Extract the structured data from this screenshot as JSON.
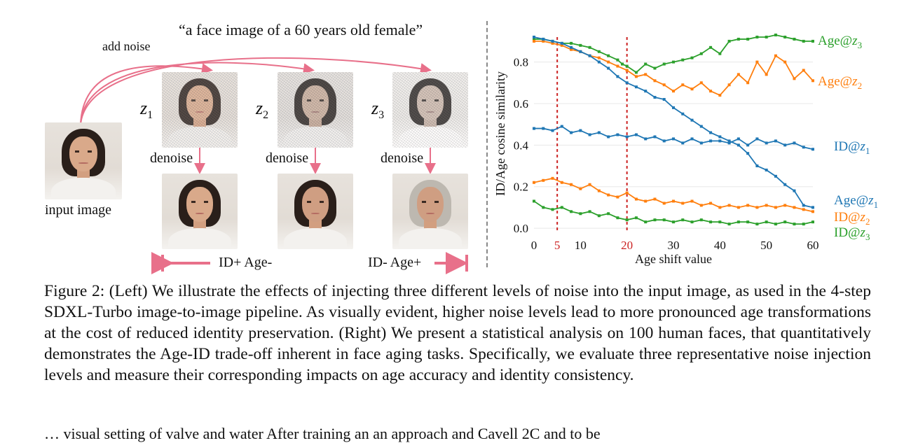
{
  "figure": {
    "prompt": "“a face image of a 60 years old female”",
    "add_noise_label": "add noise",
    "input_label": "input image",
    "denoise_label": "denoise",
    "z_labels": [
      "z",
      "z",
      "z"
    ],
    "z_subs": [
      "1",
      "2",
      "3"
    ],
    "id_plus_label": "ID+ Age-",
    "id_minus_label": "ID- Age+"
  },
  "caption": {
    "text": "Figure 2: (Left) We illustrate the effects of injecting three different levels of noise into the input image, as used in the 4-step SDXL-Turbo image-to-image pipeline. As visually evident, higher noise levels lead to more pronounced age transformations at the cost of reduced identity preservation. (Right) We present a statistical analysis on 100 human faces, that quantitatively demonstrates the Age-ID trade-off inherent in face aging tasks. Specifically, we evaluate three representative noise injection levels and measure their corresponding impacts on age accuracy and identity consistency."
  },
  "next_line_text": "… visual setting of valve and water After training an an approach and Cavell 2C and to be",
  "chart_data": {
    "type": "line",
    "xlabel": "Age shift value",
    "ylabel": "ID/Age cosine similarity",
    "xlim": [
      0,
      60
    ],
    "ylim": [
      -0.02,
      0.93
    ],
    "x_ticks": [
      0,
      10,
      30,
      40,
      50,
      60
    ],
    "x_ticks_highlight": [
      5,
      20
    ],
    "y_ticks": [
      0.0,
      0.2,
      0.4,
      0.6,
      0.8
    ],
    "y_tick_labels": [
      "0.0",
      "0.2",
      "0.4",
      "0.6",
      "0.8"
    ],
    "grid": "horizontal",
    "highlight_lines": [
      5,
      20
    ],
    "highlight_color": "#cc2222",
    "series": [
      {
        "name": "Age@",
        "sub": "3",
        "color": "#2ca02c",
        "x": [
          0,
          2,
          4,
          6,
          8,
          10,
          12,
          14,
          16,
          18,
          19,
          20,
          22,
          24,
          26,
          28,
          30,
          32,
          34,
          36,
          38,
          40,
          42,
          44,
          46,
          48,
          50,
          52,
          54,
          56,
          58,
          60
        ],
        "y": [
          0.91,
          0.91,
          0.9,
          0.89,
          0.89,
          0.88,
          0.87,
          0.85,
          0.83,
          0.81,
          0.79,
          0.78,
          0.75,
          0.79,
          0.77,
          0.79,
          0.8,
          0.81,
          0.82,
          0.84,
          0.87,
          0.84,
          0.9,
          0.91,
          0.91,
          0.92,
          0.92,
          0.93,
          0.92,
          0.91,
          0.9,
          0.9
        ]
      },
      {
        "name": "Age@",
        "sub": "2",
        "color": "#ff7f0e",
        "x": [
          0,
          2,
          4,
          6,
          8,
          10,
          12,
          14,
          16,
          18,
          20,
          22,
          24,
          26,
          28,
          30,
          32,
          34,
          36,
          38,
          40,
          42,
          44,
          46,
          48,
          50,
          52,
          54,
          56,
          58,
          60
        ],
        "y": [
          0.9,
          0.9,
          0.89,
          0.88,
          0.86,
          0.85,
          0.83,
          0.82,
          0.8,
          0.78,
          0.76,
          0.73,
          0.74,
          0.71,
          0.69,
          0.66,
          0.69,
          0.67,
          0.7,
          0.66,
          0.64,
          0.69,
          0.74,
          0.7,
          0.8,
          0.74,
          0.83,
          0.8,
          0.72,
          0.76,
          0.71
        ]
      },
      {
        "name": "ID@",
        "sub": "1",
        "color": "#1f77b4",
        "x": [
          0,
          2,
          4,
          6,
          8,
          10,
          12,
          14,
          16,
          18,
          20,
          22,
          24,
          26,
          28,
          30,
          32,
          34,
          36,
          38,
          40,
          42,
          44,
          46,
          48,
          50,
          52,
          54,
          56,
          58,
          60
        ],
        "y": [
          0.48,
          0.48,
          0.47,
          0.49,
          0.46,
          0.47,
          0.45,
          0.46,
          0.44,
          0.45,
          0.44,
          0.45,
          0.43,
          0.44,
          0.42,
          0.43,
          0.41,
          0.43,
          0.41,
          0.42,
          0.42,
          0.41,
          0.43,
          0.4,
          0.43,
          0.41,
          0.42,
          0.4,
          0.41,
          0.39,
          0.38
        ]
      },
      {
        "name": "Age@",
        "sub": "1",
        "color": "#1f77b4",
        "x": [
          0,
          2,
          4,
          6,
          8,
          10,
          12,
          14,
          16,
          18,
          20,
          22,
          24,
          26,
          28,
          30,
          32,
          34,
          36,
          38,
          40,
          42,
          44,
          46,
          48,
          50,
          52,
          54,
          56,
          58,
          60
        ],
        "y": [
          0.92,
          0.91,
          0.9,
          0.89,
          0.87,
          0.85,
          0.83,
          0.8,
          0.77,
          0.73,
          0.7,
          0.68,
          0.66,
          0.63,
          0.62,
          0.58,
          0.55,
          0.52,
          0.49,
          0.46,
          0.44,
          0.42,
          0.4,
          0.36,
          0.3,
          0.28,
          0.25,
          0.21,
          0.18,
          0.11,
          0.1
        ]
      },
      {
        "name": "ID@",
        "sub": "2",
        "color": "#ff7f0e",
        "x": [
          0,
          2,
          4,
          6,
          8,
          10,
          12,
          14,
          16,
          18,
          20,
          22,
          24,
          26,
          28,
          30,
          32,
          34,
          36,
          38,
          40,
          42,
          44,
          46,
          48,
          50,
          52,
          54,
          56,
          58,
          60
        ],
        "y": [
          0.22,
          0.23,
          0.24,
          0.22,
          0.21,
          0.19,
          0.21,
          0.18,
          0.16,
          0.15,
          0.17,
          0.14,
          0.13,
          0.14,
          0.12,
          0.13,
          0.12,
          0.13,
          0.11,
          0.12,
          0.1,
          0.11,
          0.1,
          0.11,
          0.1,
          0.11,
          0.1,
          0.11,
          0.1,
          0.09,
          0.08
        ]
      },
      {
        "name": "ID@",
        "sub": "3",
        "color": "#2ca02c",
        "x": [
          0,
          2,
          4,
          6,
          8,
          10,
          12,
          14,
          16,
          18,
          20,
          22,
          24,
          26,
          28,
          30,
          32,
          34,
          36,
          38,
          40,
          42,
          44,
          46,
          48,
          50,
          52,
          54,
          56,
          58,
          60
        ],
        "y": [
          0.13,
          0.1,
          0.09,
          0.1,
          0.08,
          0.07,
          0.08,
          0.06,
          0.07,
          0.05,
          0.04,
          0.05,
          0.03,
          0.04,
          0.04,
          0.03,
          0.04,
          0.03,
          0.04,
          0.03,
          0.03,
          0.02,
          0.03,
          0.03,
          0.02,
          0.03,
          0.02,
          0.03,
          0.02,
          0.02,
          0.03
        ]
      }
    ]
  }
}
